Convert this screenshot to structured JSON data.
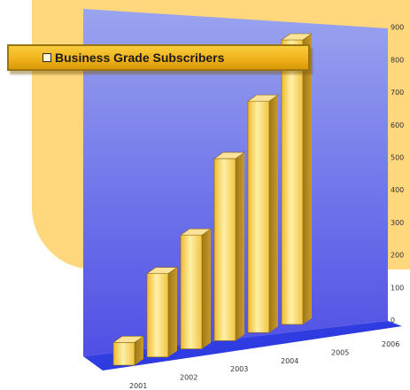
{
  "legend": {
    "label": "Business Grade Subscribers",
    "swatch_color": "#fff6d8"
  },
  "chart_data": {
    "type": "bar",
    "title": "",
    "xlabel": "",
    "ylabel": "",
    "legend": [
      "Business Grade Subscribers"
    ],
    "legend_position": "top-left",
    "categories": [
      "2001",
      "2002",
      "2003",
      "2004",
      "2005",
      "2006"
    ],
    "series": [
      {
        "name": "Business Grade Subscribers",
        "values": [
          60,
          220,
          300,
          480,
          610,
          750
        ]
      }
    ],
    "y_ticks": [
      "0",
      "100",
      "200",
      "300",
      "400",
      "500",
      "600",
      "700",
      "800",
      "900"
    ],
    "ylim": [
      0,
      900
    ],
    "grid": false,
    "style": "3d",
    "colors": {
      "bar": "#f6cc52",
      "bar_dark": "#b98c1c",
      "wall": "#5d5ee6",
      "floor": "#2233e0",
      "background": "#ffd87e"
    }
  }
}
